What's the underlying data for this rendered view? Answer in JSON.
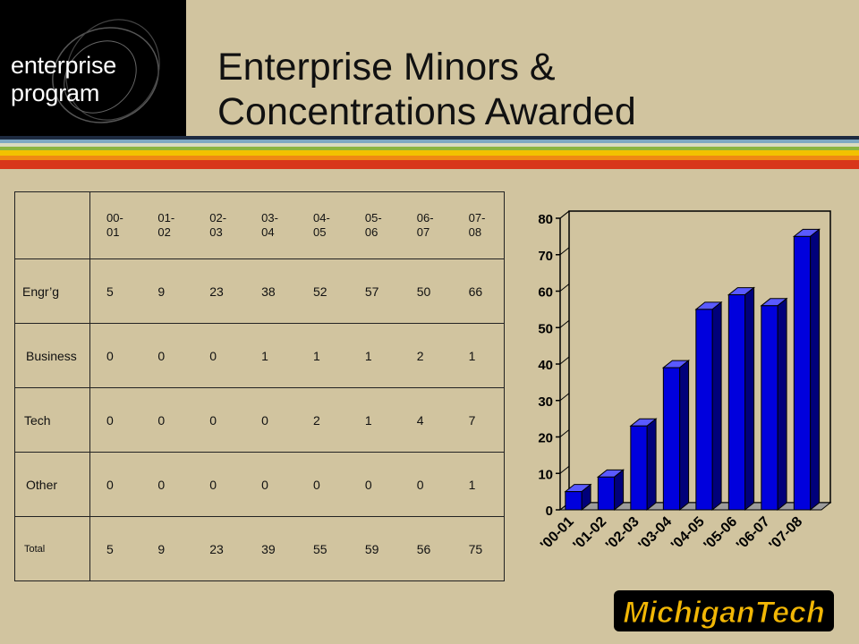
{
  "logo": {
    "text": "enterprise program"
  },
  "title": {
    "line1": "Enterprise Minors &",
    "line2": "Concentrations Awarded"
  },
  "stripes": [
    "#1d2a40",
    "#7ea9c2",
    "#d9dbc0",
    "#8bb53f",
    "#f2c200",
    "#ef8a13",
    "#d8361a"
  ],
  "table": {
    "headers": [
      [
        "00-",
        "01"
      ],
      [
        "01-",
        "02"
      ],
      [
        "02-",
        "03"
      ],
      [
        "03-",
        "04"
      ],
      [
        "04-",
        "05"
      ],
      [
        "05-",
        "06"
      ],
      [
        "06-",
        "07"
      ],
      [
        "07-",
        "08"
      ]
    ],
    "rows": [
      {
        "label": "Engr’g",
        "values": [
          "5",
          "9",
          "23",
          "38",
          "52",
          "57",
          "50",
          "66"
        ]
      },
      {
        "label": "Business",
        "values": [
          "0",
          "0",
          "0",
          "1",
          "1",
          "1",
          "2",
          "1"
        ]
      },
      {
        "label": "Tech",
        "values": [
          "0",
          "0",
          "0",
          "0",
          "2",
          "1",
          "4",
          "7"
        ]
      },
      {
        "label": "Other",
        "values": [
          "0",
          "0",
          "0",
          "0",
          "0",
          "0",
          "0",
          "1"
        ]
      },
      {
        "label": "Total",
        "values": [
          "5",
          "9",
          "23",
          "39",
          "55",
          "59",
          "56",
          "75"
        ]
      }
    ]
  },
  "chart_data": {
    "type": "bar",
    "categories": [
      "'00-01",
      "'01-02",
      "'02-03",
      "'03-04",
      "'04-05",
      "'05-06",
      "'06-07",
      "'07-08"
    ],
    "values": [
      5,
      9,
      23,
      39,
      55,
      59,
      56,
      75
    ],
    "yticks": [
      "0",
      "10",
      "20",
      "30",
      "40",
      "50",
      "60",
      "70",
      "80"
    ],
    "ylim": [
      0,
      80
    ],
    "bar_color": "#0000dd",
    "grid": false,
    "legend": "none"
  },
  "footer_logo": {
    "text": "MichiganTech"
  }
}
